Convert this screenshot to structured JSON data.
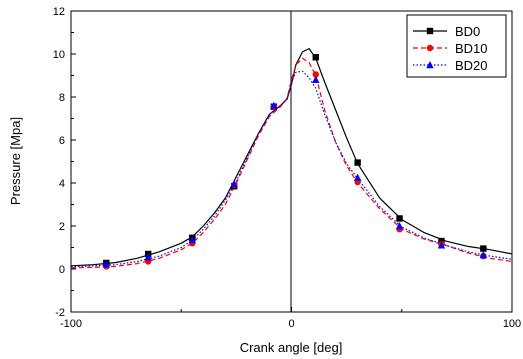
{
  "chart_data": {
    "type": "line",
    "title": "",
    "xlabel": "Crank angle [deg]",
    "ylabel": "Pressure [Mpa]",
    "xlim": [
      -100,
      100
    ],
    "ylim": [
      -2,
      12
    ],
    "xticks": [
      -100,
      0,
      100
    ],
    "yticks": [
      -2,
      0,
      2,
      4,
      6,
      8,
      10,
      12
    ],
    "grid": false,
    "legend_position": "top-right",
    "series": [
      {
        "name": "BD0",
        "color": "#000000",
        "line_style": "solid",
        "marker": "square",
        "x": [
          -100,
          -90,
          -80,
          -70,
          -60,
          -50,
          -45,
          -40,
          -35,
          -30,
          -25,
          -20,
          -15,
          -10,
          -5,
          -2,
          0,
          2,
          5,
          8,
          11,
          15,
          20,
          25,
          30,
          40,
          50,
          60,
          70,
          80,
          90,
          100
        ],
        "y": [
          0.15,
          0.2,
          0.3,
          0.5,
          0.8,
          1.2,
          1.5,
          2.0,
          2.6,
          3.3,
          4.3,
          5.3,
          6.3,
          7.2,
          7.6,
          7.9,
          8.6,
          9.5,
          10.1,
          10.25,
          9.8,
          8.7,
          7.4,
          6.1,
          4.9,
          3.3,
          2.3,
          1.7,
          1.3,
          1.05,
          0.9,
          0.7
        ],
        "marker_x": [
          -84,
          -65,
          -45,
          -26,
          -8,
          11,
          30,
          49,
          68,
          87
        ],
        "marker_y": [
          0.28,
          0.7,
          1.45,
          3.85,
          7.55,
          9.85,
          4.95,
          2.35,
          1.3,
          0.95
        ]
      },
      {
        "name": "BD10",
        "color": "#ff0000",
        "line_style": "dashed",
        "marker": "circle",
        "x": [
          -100,
          -90,
          -80,
          -70,
          -60,
          -50,
          -45,
          -40,
          -35,
          -30,
          -25,
          -20,
          -15,
          -10,
          -5,
          -2,
          0,
          2,
          5,
          8,
          11,
          15,
          20,
          25,
          30,
          40,
          50,
          60,
          70,
          80,
          90,
          100
        ],
        "y": [
          0.05,
          0.08,
          0.12,
          0.25,
          0.5,
          0.9,
          1.2,
          1.7,
          2.3,
          3.0,
          4.0,
          5.1,
          6.2,
          7.1,
          7.55,
          7.95,
          8.8,
          9.5,
          9.8,
          9.6,
          9.0,
          7.4,
          5.9,
          4.8,
          4.0,
          2.8,
          1.85,
          1.4,
          1.1,
          0.75,
          0.5,
          0.35
        ],
        "marker_x": [
          -84,
          -65,
          -45,
          -26,
          -8,
          11,
          30,
          49,
          68,
          87
        ],
        "marker_y": [
          0.12,
          0.35,
          1.2,
          3.9,
          7.55,
          9.05,
          4.05,
          1.85,
          1.15,
          0.6
        ]
      },
      {
        "name": "BD20",
        "color": "#0000ff",
        "line_style": "dotted",
        "marker": "triangle",
        "x": [
          -100,
          -90,
          -80,
          -70,
          -60,
          -50,
          -45,
          -40,
          -35,
          -30,
          -25,
          -20,
          -15,
          -10,
          -5,
          -2,
          0,
          2,
          5,
          8,
          11,
          15,
          20,
          25,
          30,
          40,
          50,
          60,
          70,
          80,
          90,
          100
        ],
        "y": [
          0.1,
          0.15,
          0.2,
          0.35,
          0.6,
          1.0,
          1.35,
          1.85,
          2.45,
          3.2,
          4.1,
          5.2,
          6.3,
          7.2,
          7.6,
          7.9,
          8.7,
          9.15,
          9.2,
          8.9,
          8.4,
          7.2,
          5.9,
          4.9,
          4.2,
          2.9,
          1.95,
          1.45,
          1.1,
          0.8,
          0.6,
          0.45
        ],
        "marker_x": [
          -84,
          -65,
          -45,
          -26,
          -8,
          11,
          30,
          49,
          68,
          87
        ],
        "marker_y": [
          0.22,
          0.55,
          1.35,
          3.95,
          7.6,
          8.8,
          4.25,
          2.0,
          1.1,
          0.65
        ]
      }
    ]
  }
}
